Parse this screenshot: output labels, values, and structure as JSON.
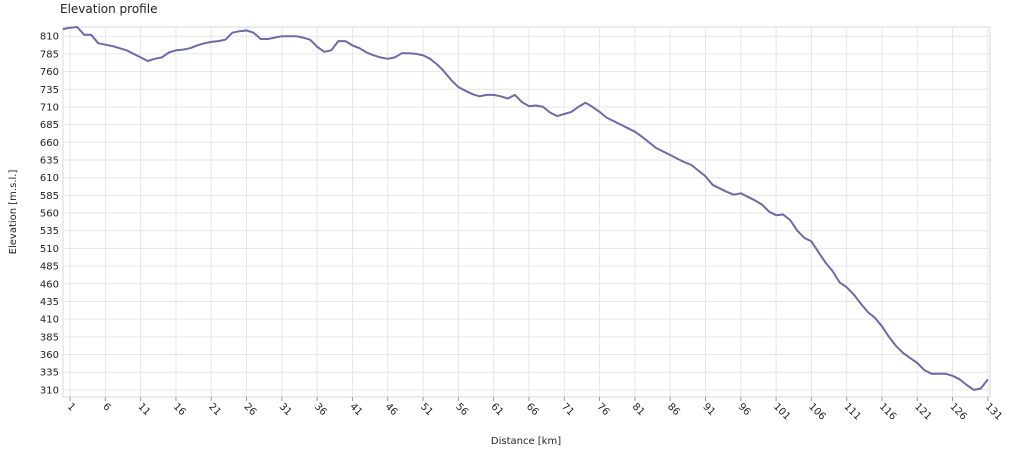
{
  "chart_data": {
    "type": "line",
    "title": "Elevation profile",
    "x_label": "Distance [km]",
    "y_label": "Elevation [m.s.l.]",
    "x": [
      0,
      1,
      2,
      3,
      4,
      5,
      6,
      7,
      8,
      9,
      10,
      11,
      12,
      13,
      14,
      15,
      16,
      17,
      18,
      19,
      20,
      21,
      22,
      23,
      24,
      25,
      26,
      27,
      28,
      29,
      30,
      31,
      32,
      33,
      34,
      35,
      36,
      37,
      38,
      39,
      40,
      41,
      42,
      43,
      44,
      45,
      46,
      47,
      48,
      49,
      50,
      51,
      52,
      53,
      54,
      55,
      56,
      57,
      58,
      59,
      60,
      61,
      62,
      63,
      64,
      65,
      66,
      67,
      68,
      69,
      70,
      71,
      72,
      73,
      74,
      75,
      76,
      77,
      78,
      79,
      80,
      81,
      82,
      83,
      84,
      85,
      86,
      87,
      88,
      89,
      90,
      91,
      92,
      93,
      94,
      95,
      96,
      97,
      98,
      99,
      100,
      101,
      102,
      103,
      104,
      105,
      106,
      107,
      108,
      109,
      110,
      111,
      112,
      113,
      114,
      115,
      116,
      117,
      118,
      119,
      120,
      121,
      122,
      123,
      124,
      125,
      126,
      127,
      128,
      129,
      130,
      131
    ],
    "values": [
      820,
      822,
      823,
      812,
      812,
      800,
      798,
      796,
      793,
      790,
      785,
      780,
      775,
      778,
      780,
      787,
      790,
      791,
      793,
      797,
      800,
      802,
      803,
      805,
      815,
      817,
      818,
      815,
      806,
      806,
      808,
      810,
      810,
      810,
      808,
      805,
      795,
      788,
      790,
      803,
      803,
      797,
      793,
      787,
      783,
      780,
      778,
      780,
      786,
      786,
      785,
      783,
      778,
      770,
      760,
      748,
      738,
      733,
      728,
      725,
      727,
      727,
      725,
      722,
      727,
      717,
      711,
      712,
      710,
      702,
      697,
      700,
      703,
      710,
      716,
      710,
      703,
      695,
      690,
      685,
      680,
      675,
      668,
      660,
      652,
      647,
      642,
      637,
      632,
      628,
      620,
      612,
      600,
      595,
      590,
      586,
      588,
      583,
      578,
      572,
      562,
      557,
      558,
      550,
      535,
      525,
      520,
      505,
      490,
      478,
      462,
      455,
      445,
      432,
      420,
      412,
      400,
      385,
      372,
      362,
      355,
      348,
      338,
      333,
      333,
      333,
      330,
      325,
      317,
      310,
      312,
      325
    ],
    "color": "#6b6ba8",
    "xlim": [
      0,
      131.3
    ],
    "ylim": [
      300,
      823
    ],
    "xticks": [
      1,
      6,
      11,
      16,
      21,
      26,
      31,
      36,
      41,
      46,
      51,
      56,
      61,
      66,
      71,
      76,
      81,
      86,
      91,
      96,
      101,
      106,
      111,
      116,
      121,
      126,
      131
    ],
    "yticks": [
      310,
      335,
      360,
      385,
      410,
      435,
      460,
      485,
      510,
      535,
      560,
      585,
      610,
      635,
      660,
      685,
      710,
      735,
      760,
      785,
      810
    ],
    "grid": true
  }
}
